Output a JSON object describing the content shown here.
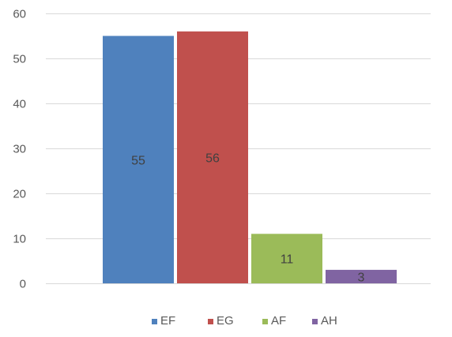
{
  "chart_data": {
    "type": "bar",
    "title": "",
    "xlabel": "",
    "ylabel": "",
    "ylim": [
      0,
      60
    ],
    "yticks": [
      0,
      10,
      20,
      30,
      40,
      50,
      60
    ],
    "grid": true,
    "legend_position": "bottom",
    "series": [
      {
        "name": "EF",
        "value": 55,
        "label": "55",
        "color": "#4F81BD"
      },
      {
        "name": "EG",
        "value": 56,
        "label": "56",
        "color": "#C0504D"
      },
      {
        "name": "AF",
        "value": 11,
        "label": "11",
        "color": "#9BBB59"
      },
      {
        "name": "AH",
        "value": 3,
        "label": "3",
        "color": "#8064A2"
      }
    ]
  }
}
